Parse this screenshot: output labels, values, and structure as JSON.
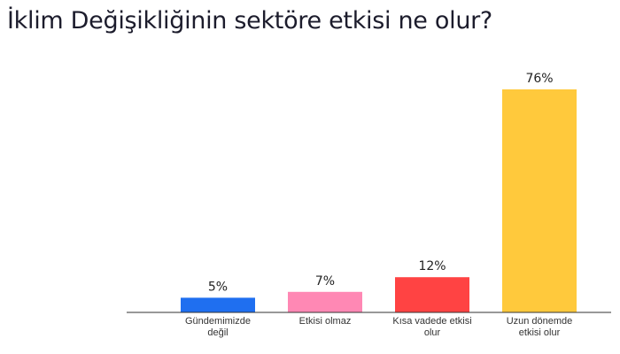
{
  "chart_data": {
    "type": "bar",
    "title": "İklim Değişikliğinin sektöre etkisi ne olur?",
    "categories": [
      "Gündemimizde değil",
      "Etkisi olmaz",
      "Kısa vadede etkisi olur",
      "Uzun dönemde etkisi olur"
    ],
    "values": [
      5,
      7,
      12,
      76
    ],
    "value_labels": [
      "5%",
      "7%",
      "12%",
      "76%"
    ],
    "colors": [
      "#1f6ff0",
      "#ff88b4",
      "#ff4343",
      "#ffc93c"
    ]
  }
}
